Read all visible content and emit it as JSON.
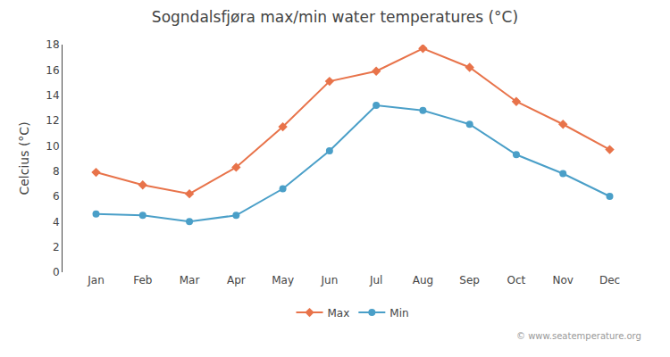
{
  "chart_data": {
    "type": "line",
    "title": "Sogndalsfjøra max/min water temperatures (°C)",
    "y_label": "Celcius (°C)",
    "categories": [
      "Jan",
      "Feb",
      "Mar",
      "Apr",
      "May",
      "Jun",
      "Jul",
      "Aug",
      "Sep",
      "Oct",
      "Nov",
      "Dec"
    ],
    "series": [
      {
        "name": "Max",
        "color": "#e8734a",
        "marker": "diamond",
        "line_style": "solid",
        "values": [
          7.9,
          6.9,
          6.2,
          8.3,
          11.5,
          15.1,
          15.9,
          17.7,
          16.2,
          13.5,
          11.7,
          9.7
        ]
      },
      {
        "name": "Min",
        "color": "#4a9fc8",
        "marker": "circle",
        "line_style": "solid",
        "values": [
          4.6,
          4.5,
          4.0,
          4.5,
          6.6,
          9.6,
          13.2,
          12.8,
          11.7,
          9.3,
          7.8,
          6.0
        ]
      }
    ],
    "ylim": [
      0,
      18
    ],
    "yticks": [
      0,
      2,
      4,
      6,
      8,
      10,
      12,
      14,
      16,
      18
    ],
    "grid": false,
    "legend": "bottom",
    "annotations": [
      "© www.seatemperature.org"
    ]
  }
}
